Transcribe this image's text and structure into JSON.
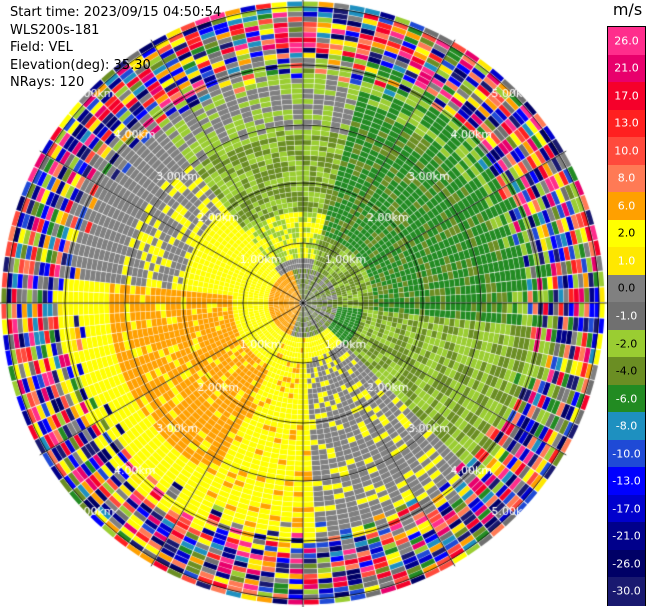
{
  "info": {
    "start_time": "Start time: 2023/09/15 04:50:54",
    "instrument": "WLS200s-181",
    "field": "Field: VEL",
    "elevation": "Elevation(deg): 35.30",
    "nrays": "NRays: 120"
  },
  "colorbar": {
    "unit": "m/s",
    "levels": [
      {
        "label": "26.0",
        "color": "#ff2d8c",
        "dark": false
      },
      {
        "label": "21.0",
        "color": "#e8006c",
        "dark": false
      },
      {
        "label": "17.0",
        "color": "#f5002a",
        "dark": false
      },
      {
        "label": "13.0",
        "color": "#ff2020",
        "dark": false
      },
      {
        "label": "10.0",
        "color": "#ff4a3c",
        "dark": false
      },
      {
        "label": "8.0",
        "color": "#ff7a55",
        "dark": false
      },
      {
        "label": "6.0",
        "color": "#ffa000",
        "dark": false
      },
      {
        "label": "2.0",
        "color": "#ffff00",
        "dark": true
      },
      {
        "label": "1.0",
        "color": "#ffe800",
        "dark": false
      },
      {
        "label": "0.0",
        "color": "#808080",
        "dark": true
      },
      {
        "label": "-1.0",
        "color": "#707070",
        "dark": false
      },
      {
        "label": "-2.0",
        "color": "#9acd32",
        "dark": true
      },
      {
        "label": "-4.0",
        "color": "#6b8e23",
        "dark": true
      },
      {
        "label": "-6.0",
        "color": "#228b22",
        "dark": false
      },
      {
        "label": "-8.0",
        "color": "#1e90c0",
        "dark": false
      },
      {
        "label": "-10.0",
        "color": "#1f4ad6",
        "dark": false
      },
      {
        "label": "-13.0",
        "color": "#0000ff",
        "dark": false
      },
      {
        "label": "-17.0",
        "color": "#0000cd",
        "dark": false
      },
      {
        "label": "-21.0",
        "color": "#00008b",
        "dark": false
      },
      {
        "label": "-26.0",
        "color": "#000066",
        "dark": false
      },
      {
        "label": "-30.0",
        "color": "#191970",
        "dark": false
      }
    ]
  },
  "range_labels": [
    "1.00km",
    "2.00km",
    "3.00km",
    "4.00km",
    "5.00km"
  ],
  "colors": {
    "orange": "#ffa000",
    "yellow": "#ffff00",
    "gray": "#808080",
    "lightgreen": "#9acd32",
    "olive": "#6b8e23",
    "green": "#228b22"
  }
}
